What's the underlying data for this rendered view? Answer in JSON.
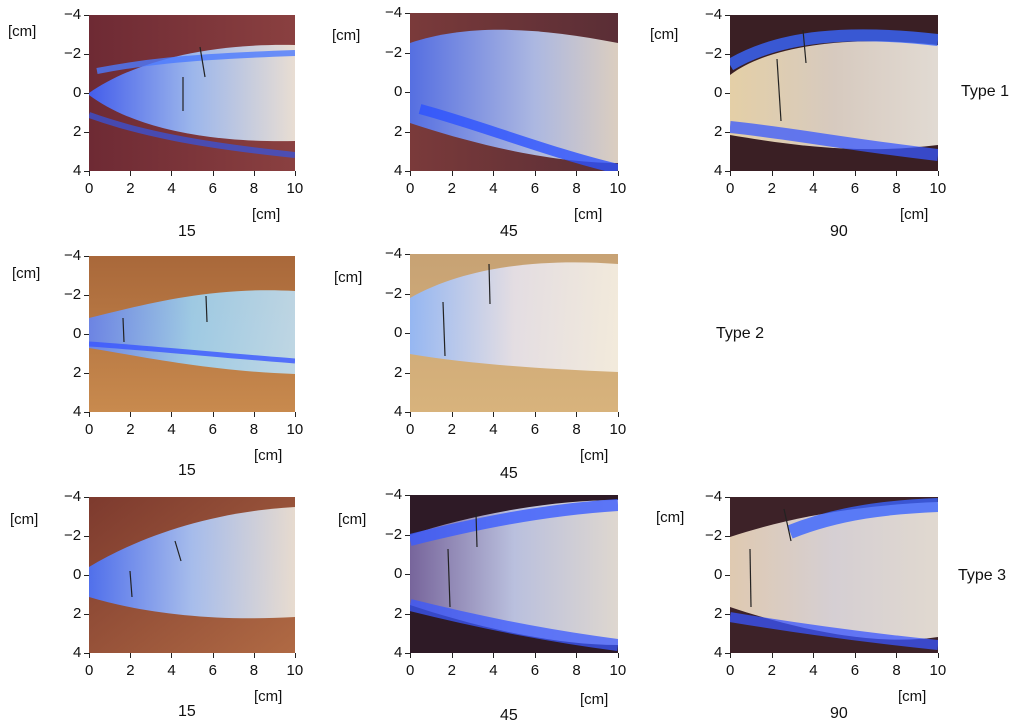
{
  "units": {
    "x": "[cm]",
    "y": "[cm]"
  },
  "x_ticks": [
    "0",
    "2",
    "4",
    "6",
    "8",
    "10"
  ],
  "y_ticks": [
    "−4",
    "−2",
    "0",
    "2",
    "4"
  ],
  "rows": [
    {
      "type_label": "Type 1",
      "panels": [
        {
          "caption": "15",
          "palette": "maroon"
        },
        {
          "caption": "45",
          "palette": "maroon"
        },
        {
          "caption": "90",
          "palette": "dark"
        }
      ]
    },
    {
      "type_label": "Type 2",
      "panels": [
        {
          "caption": "15",
          "palette": "orange"
        },
        {
          "caption": "45",
          "palette": "tan"
        }
      ]
    },
    {
      "type_label": "Type 3",
      "panels": [
        {
          "caption": "15",
          "palette": "rust"
        },
        {
          "caption": "45",
          "palette": "dark"
        },
        {
          "caption": "90",
          "palette": "dark"
        }
      ]
    }
  ],
  "colors": {
    "flame_blue": "#2f6bff",
    "flame_core": "#f4ecd8",
    "maroon_bg": "#7a2e2e",
    "orange_bg": "#b8743a",
    "tan_bg": "#d6b07a",
    "rust_bg": "#9a4a32",
    "dark_bg": "#3a1f24"
  }
}
